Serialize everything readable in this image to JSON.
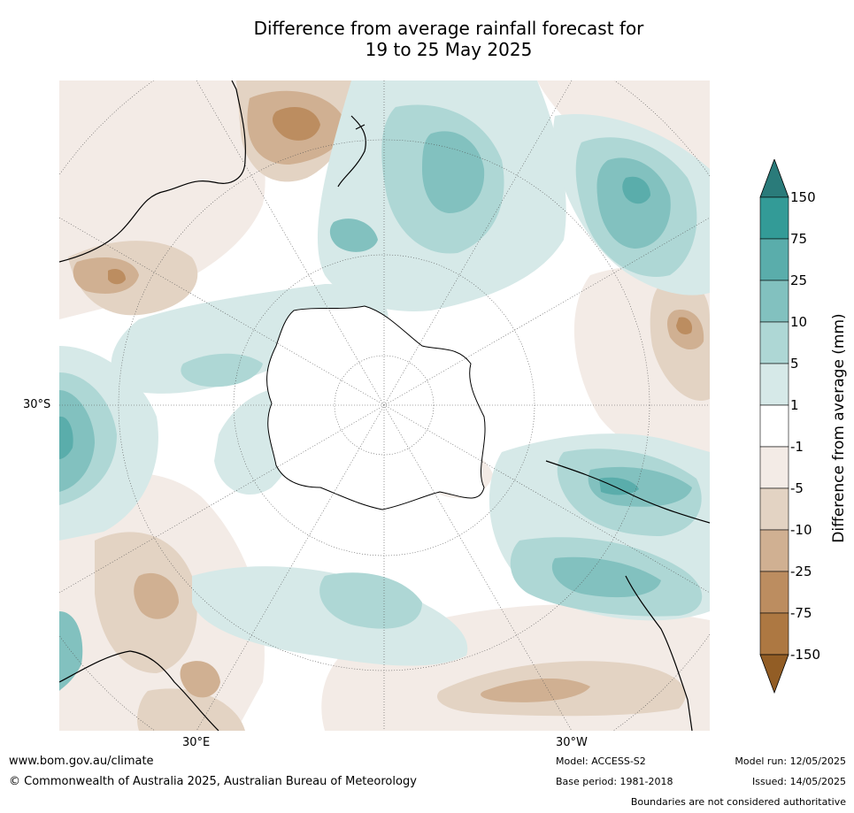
{
  "title": {
    "line1": "Difference from average rainfall forecast for",
    "line2": "19 to 25 May 2025"
  },
  "map": {
    "projection_labels": {
      "lat": "30°S",
      "lon_east": "30°E",
      "lon_west": "30°W"
    }
  },
  "colorbar": {
    "label": "Difference from average (mm)",
    "ticks": [
      "150",
      "75",
      "25",
      "10",
      "5",
      "1",
      "-1",
      "-5",
      "-10",
      "-25",
      "-75",
      "-150"
    ],
    "bands": [
      {
        "range": "> 150",
        "color": "#2a7b7a"
      },
      {
        "range": "75 to 150",
        "color": "#339b97"
      },
      {
        "range": "25 to 75",
        "color": "#5aadab"
      },
      {
        "range": "10 to 25",
        "color": "#82c1bf"
      },
      {
        "range": "5 to 10",
        "color": "#aed7d5"
      },
      {
        "range": "1 to 5",
        "color": "#d6e9e8"
      },
      {
        "range": "-1 to 1",
        "color": "#ffffff"
      },
      {
        "range": "-5 to -1",
        "color": "#f3ebe6"
      },
      {
        "range": "-10 to -5",
        "color": "#e3d3c3"
      },
      {
        "range": "-25 to -10",
        "color": "#d0b092"
      },
      {
        "range": "-75 to -25",
        "color": "#bc8d60"
      },
      {
        "range": "-150 to -75",
        "color": "#ad7842"
      },
      {
        "range": "< -150",
        "color": "#925d25"
      }
    ]
  },
  "footer": {
    "website": "www.bom.gov.au/climate",
    "copyright": "© Commonwealth of Australia 2025, Australian Bureau of Meteorology",
    "model": "Model: ACCESS-S2",
    "base_period": "Base period: 1981-2018",
    "model_run": "Model run: 12/05/2025",
    "issued": "Issued: 14/05/2025",
    "disclaimer": "Boundaries are not considered authoritative"
  }
}
